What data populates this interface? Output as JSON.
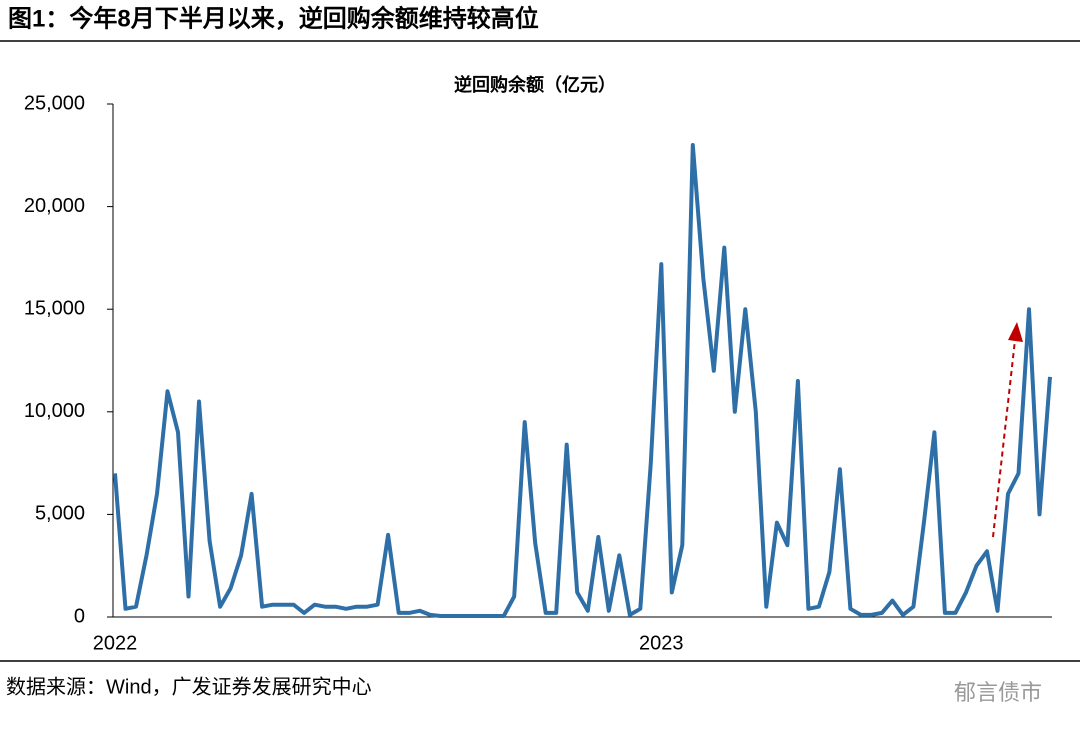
{
  "header": "图1：今年8月下半月以来，逆回购余额维持较高位",
  "source": "数据来源：Wind，广发证券发展研究中心",
  "watermark": "郁言债市",
  "chart_data": {
    "type": "line",
    "title": "逆回购余额（亿元）",
    "color": "#2e6fa8",
    "categories": [
      "2022",
      null,
      null,
      null,
      null,
      null,
      null,
      null,
      null,
      null,
      null,
      null,
      null,
      null,
      null,
      null,
      null,
      null,
      null,
      null,
      null,
      null,
      null,
      null,
      null,
      null,
      null,
      null,
      null,
      null,
      null,
      null,
      null,
      null,
      null,
      null,
      null,
      null,
      null,
      null,
      null,
      null,
      null,
      null,
      null,
      null,
      null,
      null,
      null,
      null,
      null,
      null,
      "2023",
      null,
      null,
      null,
      null,
      null,
      null,
      null,
      null,
      null,
      null,
      null,
      null,
      null,
      null,
      null,
      null,
      null,
      null,
      null,
      null,
      null,
      null,
      null,
      null,
      null,
      null,
      null,
      null,
      null,
      null,
      null,
      null,
      null,
      null,
      null,
      null,
      null
    ],
    "values": [
      7000,
      400,
      500,
      3000,
      6000,
      11000,
      9000,
      1000,
      10500,
      3700,
      500,
      1400,
      3000,
      6000,
      500,
      600,
      600,
      600,
      200,
      600,
      500,
      500,
      400,
      500,
      500,
      600,
      4000,
      200,
      200,
      300,
      100,
      50,
      50,
      50,
      50,
      50,
      50,
      50,
      1000,
      9500,
      3600,
      200,
      200,
      8400,
      1200,
      300,
      3900,
      300,
      3000,
      100,
      400,
      7500,
      17200,
      1200,
      3500,
      23000,
      16500,
      12000,
      18000,
      10000,
      15000,
      10000,
      500,
      4600,
      3500,
      11500,
      400,
      500,
      2200,
      7200,
      400,
      100,
      100,
      200,
      800,
      100,
      500,
      4600,
      9000,
      200,
      200,
      1200,
      2500,
      3200,
      300,
      6000,
      7000,
      15000,
      5000,
      11700
    ],
    "ylim": [
      0,
      25000
    ],
    "yticks": [
      0,
      {
        "value": 5000,
        "label": "5,000"
      },
      {
        "value": 10000,
        "label": "10,000"
      },
      {
        "value": 15000,
        "label": "15,000"
      },
      {
        "value": 20000,
        "label": "20,000"
      },
      {
        "value": 25000,
        "label": "25,000"
      }
    ],
    "grid": false
  }
}
